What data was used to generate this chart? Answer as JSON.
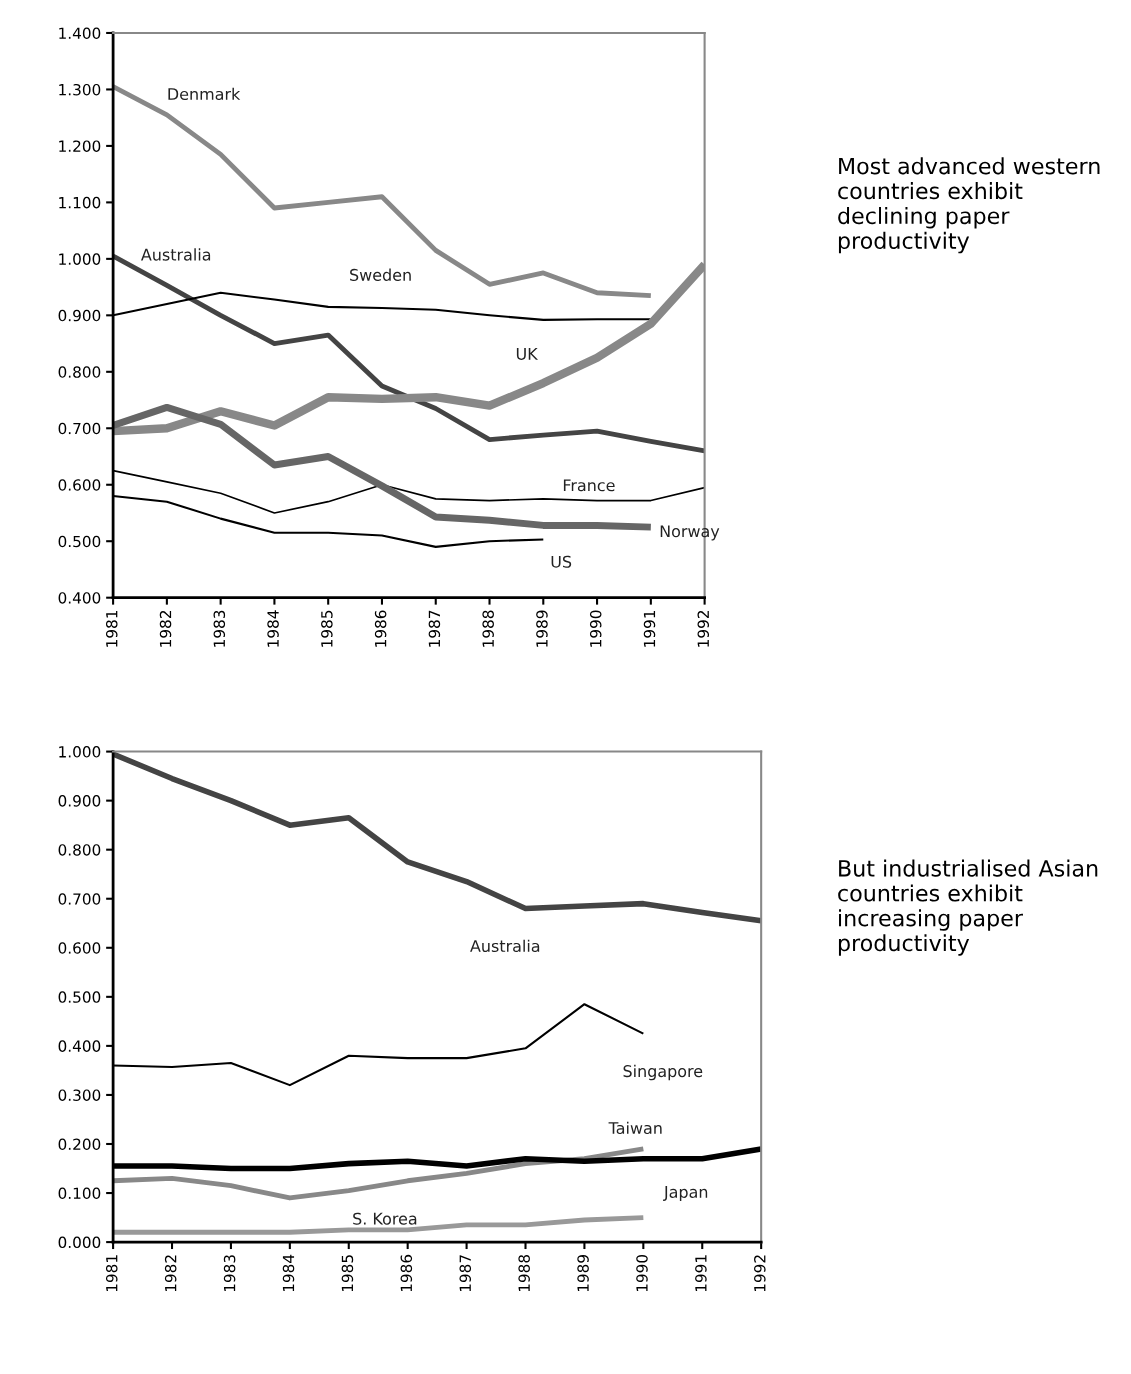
{
  "chart_data": [
    {
      "type": "line",
      "x": [
        1981,
        1982,
        1983,
        1984,
        1985,
        1986,
        1987,
        1988,
        1989,
        1990,
        1991,
        1992
      ],
      "xlim": [
        1981,
        1992
      ],
      "xticks": [
        1981,
        1982,
        1983,
        1984,
        1985,
        1986,
        1987,
        1988,
        1989,
        1990,
        1991,
        1992
      ],
      "ylim": [
        0.4,
        1.4
      ],
      "yticks": [
        {
          "value": 0.4,
          "label": "0.400"
        },
        {
          "value": 0.5,
          "label": "0.500"
        },
        {
          "value": 0.6,
          "label": "0.600"
        },
        {
          "value": 0.7,
          "label": "0.700"
        },
        {
          "value": 0.8,
          "label": "0.800"
        },
        {
          "value": 0.9,
          "label": "0.900"
        },
        {
          "value": 1.0,
          "label": "1.000"
        },
        {
          "value": 1.1,
          "label": "1.100"
        },
        {
          "value": 1.2,
          "label": "1.200"
        },
        {
          "value": 1.3,
          "label": "1.300"
        },
        {
          "value": 1.4,
          "label": "1.400"
        }
      ],
      "annotations": [
        "Most advanced western countries exhibit declining paper productivity"
      ],
      "series": [
        {
          "name": "Denmark",
          "color": "#888888",
          "values": [
            1.305,
            1.255,
            1.185,
            1.09,
            1.1,
            1.11,
            1.015,
            0.955,
            0.975,
            0.94,
            0.935,
            null
          ]
        },
        {
          "name": "Australia",
          "color": "#444444",
          "values": [
            1.005,
            0.953,
            0.9,
            0.85,
            0.865,
            0.775,
            0.735,
            0.68,
            0.688,
            0.695,
            0.677,
            0.66
          ]
        },
        {
          "name": "Sweden",
          "color": "#000000",
          "values": [
            0.9,
            0.92,
            0.94,
            0.928,
            0.915,
            0.913,
            0.91,
            0.9,
            0.892,
            0.893,
            0.893,
            null
          ]
        },
        {
          "name": "UK",
          "color": "#888888",
          "values": [
            0.695,
            0.7,
            0.73,
            0.705,
            0.755,
            0.752,
            0.755,
            0.74,
            0.78,
            0.825,
            0.885,
            0.99
          ]
        },
        {
          "name": "France",
          "color": "#000000",
          "values": [
            0.625,
            0.605,
            0.585,
            0.55,
            0.57,
            0.6,
            0.575,
            0.572,
            0.575,
            0.572,
            0.572,
            0.595
          ]
        },
        {
          "name": "Norway",
          "color": "#666666",
          "values": [
            0.705,
            0.737,
            0.707,
            0.635,
            0.65,
            0.598,
            0.543,
            0.537,
            0.528,
            0.528,
            0.525,
            null
          ]
        },
        {
          "name": "US",
          "color": "#000000",
          "values": [
            0.58,
            0.57,
            0.54,
            0.515,
            0.515,
            0.51,
            0.49,
            0.5,
            0.503,
            null,
            null,
            null
          ]
        }
      ]
    },
    {
      "type": "line",
      "x": [
        1981,
        1982,
        1983,
        1984,
        1985,
        1986,
        1987,
        1988,
        1989,
        1990,
        1991,
        1992
      ],
      "xlim": [
        1981,
        1992
      ],
      "xticks": [
        1981,
        1982,
        1983,
        1984,
        1985,
        1986,
        1987,
        1988,
        1989,
        1990,
        1991,
        1992
      ],
      "ylim": [
        0.0,
        1.0
      ],
      "yticks": [
        {
          "value": 0.0,
          "label": "0.000"
        },
        {
          "value": 0.1,
          "label": "0.100"
        },
        {
          "value": 0.2,
          "label": "0.200"
        },
        {
          "value": 0.3,
          "label": "0.300"
        },
        {
          "value": 0.4,
          "label": "0.400"
        },
        {
          "value": 0.5,
          "label": "0.500"
        },
        {
          "value": 0.6,
          "label": "0.600"
        },
        {
          "value": 0.7,
          "label": "0.700"
        },
        {
          "value": 0.8,
          "label": "0.800"
        },
        {
          "value": 0.9,
          "label": "0.900"
        },
        {
          "value": 1.0,
          "label": "1.000"
        }
      ],
      "annotations": [
        "But industrialised Asian countries exhibit increasing paper productivity"
      ],
      "series": [
        {
          "name": "Australia",
          "color": "#444444",
          "values": [
            0.995,
            0.945,
            0.9,
            0.85,
            0.865,
            0.775,
            0.735,
            0.68,
            0.685,
            0.69,
            0.672,
            0.655
          ]
        },
        {
          "name": "Singapore",
          "color": "#000000",
          "values": [
            0.36,
            0.357,
            0.365,
            0.32,
            0.38,
            0.375,
            0.375,
            0.395,
            0.485,
            0.425,
            null,
            null
          ]
        },
        {
          "name": "Taiwan",
          "color": "#888888",
          "values": [
            0.125,
            0.13,
            0.115,
            0.09,
            0.105,
            0.125,
            0.14,
            0.16,
            0.17,
            0.19,
            null,
            null
          ]
        },
        {
          "name": "Japan",
          "color": "#000000",
          "values": [
            0.155,
            0.155,
            0.15,
            0.15,
            0.16,
            0.165,
            0.155,
            0.17,
            0.165,
            0.17,
            0.17,
            0.19
          ]
        },
        {
          "name": "S. Korea",
          "color": "#999999",
          "values": [
            0.02,
            0.02,
            0.02,
            0.02,
            0.025,
            0.025,
            0.035,
            0.035,
            0.045,
            0.05,
            null,
            null
          ]
        }
      ]
    }
  ]
}
